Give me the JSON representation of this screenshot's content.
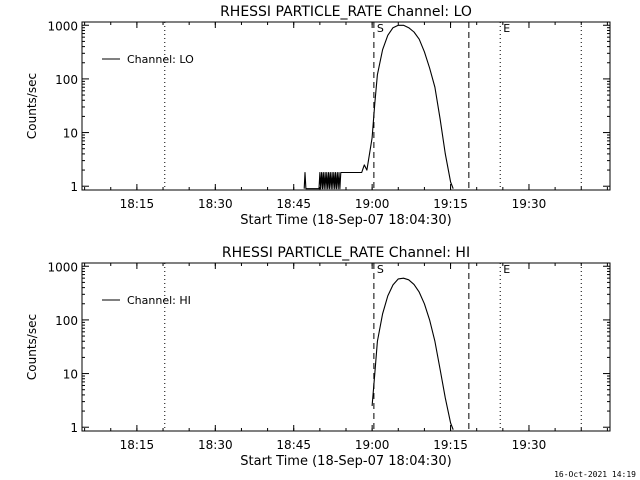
{
  "footer": "16-Oct-2021 14:19",
  "chart_data": [
    {
      "type": "line",
      "title": "RHESSI PARTICLE_RATE Channel: LO",
      "xlabel": "Start Time (18-Sep-07 18:04:30)",
      "ylabel": "Counts/sec",
      "yscale": "log",
      "ylim": [
        0.85,
        1150
      ],
      "xlim": [
        "18:04:30",
        "19:45:30"
      ],
      "x_ticks": [
        "18:15",
        "18:30",
        "18:45",
        "19:00",
        "19:15",
        "19:30"
      ],
      "y_ticks": [
        "1",
        "10",
        "100",
        "1000"
      ],
      "legend": "Channel: LO",
      "legend_position": "top-left",
      "markers": [
        {
          "time": "18:20:20",
          "style": "dotted",
          "label": ""
        },
        {
          "time": "19:00:20",
          "style": "dashed",
          "label": "S"
        },
        {
          "time": "19:18:30",
          "style": "dashed",
          "label": ""
        },
        {
          "time": "19:24:30",
          "style": "dotted",
          "label": "E"
        },
        {
          "time": "19:40:00",
          "style": "dotted",
          "label": ""
        }
      ],
      "series": [
        {
          "x": [
            "18:47:00",
            "18:47:10",
            "18:47:20",
            "18:47:30",
            "18:47:40",
            "18:48:00",
            "18:48:30",
            "18:49:00",
            "18:49:30",
            "18:49:50",
            "18:50:00",
            "18:50:10",
            "18:50:20",
            "18:50:30",
            "18:50:40",
            "18:50:50",
            "18:51:00",
            "18:51:10",
            "18:51:20",
            "18:51:30",
            "18:51:40",
            "18:51:50",
            "18:52:00",
            "18:52:10",
            "18:52:20",
            "18:52:30",
            "18:52:40",
            "18:52:50",
            "18:53:00",
            "18:53:10",
            "18:53:20",
            "18:53:30",
            "18:53:40",
            "18:53:50",
            "18:54:00",
            "18:54:30",
            "18:55:00",
            "18:56:00",
            "18:57:00",
            "18:58:00",
            "18:58:30",
            "18:59:00",
            "18:59:30",
            "19:00:00",
            "19:00:30",
            "19:01:00",
            "19:02:00",
            "19:03:00",
            "19:04:00",
            "19:05:00",
            "19:06:00",
            "19:07:00",
            "19:08:00",
            "19:09:00",
            "19:10:00",
            "19:11:00",
            "19:12:00",
            "19:13:00",
            "19:14:00",
            "19:15:00",
            "19:15:30"
          ],
          "values": [
            0.9,
            1.8,
            0.9,
            0.9,
            0.9,
            0.9,
            0.9,
            0.9,
            0.9,
            0.9,
            1.8,
            0.9,
            1.8,
            0.9,
            1.8,
            0.9,
            1.8,
            0.9,
            1.8,
            0.9,
            1.8,
            0.9,
            1.8,
            0.9,
            1.8,
            0.9,
            1.8,
            0.9,
            1.8,
            0.9,
            1.8,
            0.9,
            1.8,
            0.9,
            1.8,
            1.8,
            1.8,
            1.8,
            1.8,
            1.8,
            2.5,
            2.0,
            4.0,
            8,
            35,
            120,
            350,
            650,
            900,
            1000,
            1000,
            900,
            750,
            550,
            320,
            160,
            70,
            18,
            4,
            1.2,
            0.9
          ]
        }
      ]
    },
    {
      "type": "line",
      "title": "RHESSI PARTICLE_RATE Channel: HI",
      "xlabel": "Start Time (18-Sep-07 18:04:30)",
      "ylabel": "Counts/sec",
      "yscale": "log",
      "ylim": [
        0.85,
        1150
      ],
      "xlim": [
        "18:04:30",
        "19:45:30"
      ],
      "x_ticks": [
        "18:15",
        "18:30",
        "18:45",
        "19:00",
        "19:15",
        "19:30"
      ],
      "y_ticks": [
        "1",
        "10",
        "100",
        "1000"
      ],
      "legend": "Channel: HI",
      "legend_position": "top-left",
      "markers": [
        {
          "time": "18:20:20",
          "style": "dotted",
          "label": ""
        },
        {
          "time": "19:00:20",
          "style": "dashed",
          "label": "S"
        },
        {
          "time": "19:18:30",
          "style": "dashed",
          "label": ""
        },
        {
          "time": "19:24:30",
          "style": "dotted",
          "label": "E"
        },
        {
          "time": "19:40:00",
          "style": "dotted",
          "label": ""
        }
      ],
      "series": [
        {
          "x": [
            "19:00:00",
            "19:00:30",
            "19:01:00",
            "19:02:00",
            "19:03:00",
            "19:04:00",
            "19:05:00",
            "19:06:00",
            "19:07:00",
            "19:08:00",
            "19:09:00",
            "19:10:00",
            "19:11:00",
            "19:12:00",
            "19:13:00",
            "19:14:00",
            "19:15:00",
            "19:15:30"
          ],
          "values": [
            2.5,
            10,
            40,
            130,
            280,
            450,
            580,
            600,
            560,
            460,
            330,
            200,
            100,
            40,
            12,
            3.5,
            1.2,
            0.9
          ]
        }
      ]
    }
  ]
}
